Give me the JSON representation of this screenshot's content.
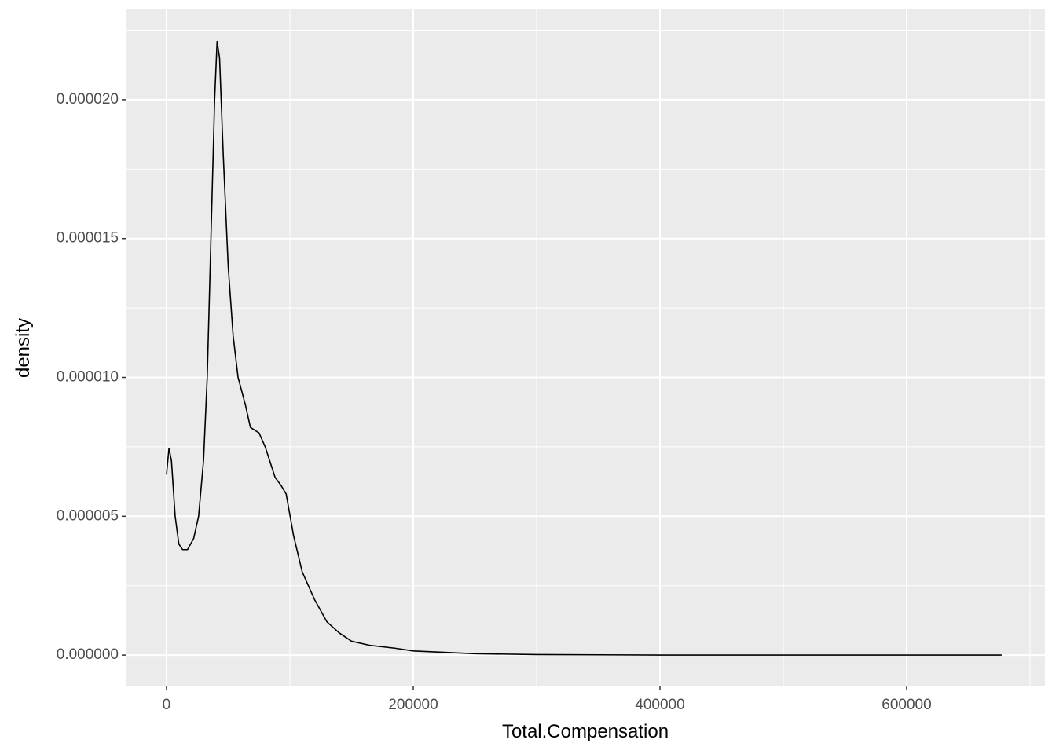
{
  "chart_data": {
    "type": "line",
    "x_label": "Total.Compensation",
    "y_label": "density",
    "x": [
      0,
      2000,
      4000,
      7000,
      10000,
      13000,
      17000,
      22000,
      26000,
      30000,
      33000,
      36000,
      39000,
      41000,
      43000,
      46000,
      50000,
      54000,
      58000,
      64000,
      68000,
      75000,
      80000,
      88000,
      93000,
      97000,
      103000,
      110000,
      120000,
      130000,
      140000,
      150000,
      165000,
      185000,
      200000,
      250000,
      300000,
      400000,
      677000
    ],
    "series": [
      {
        "color": "#000000",
        "values": [
          6.5e-06,
          7.45e-06,
          7e-06,
          5e-06,
          4e-06,
          3.8e-06,
          3.8e-06,
          4.2e-06,
          5e-06,
          7e-06,
          1e-05,
          1.5e-05,
          2e-05,
          2.21e-05,
          2.15e-05,
          1.8e-05,
          1.4e-05,
          1.15e-05,
          1e-05,
          9e-06,
          8.2e-06,
          8e-06,
          7.5e-06,
          6.4e-06,
          6.1e-06,
          5.8e-06,
          4.3e-06,
          3e-06,
          2e-06,
          1.2e-06,
          8e-07,
          5e-07,
          3.5e-07,
          2.5e-07,
          1.5e-07,
          5e-08,
          2e-08,
          0,
          0
        ]
      }
    ],
    "xlim": [
      -33100,
      712100
    ],
    "ylim": [
      -1.1e-06,
      2.325e-05
    ],
    "xticks": [
      0,
      200000,
      400000,
      600000
    ],
    "yticks": [
      {
        "value": 0,
        "label": "0.000000"
      },
      {
        "value": 5e-06,
        "label": "0.000005"
      },
      {
        "value": 1e-05,
        "label": "0.000010"
      },
      {
        "value": 1.5e-05,
        "label": "0.000015"
      },
      {
        "value": 2e-05,
        "label": "0.000020"
      }
    ],
    "xminor": [
      100000,
      300000,
      500000,
      700000
    ],
    "yminor": [
      2.5e-06,
      7.5e-06,
      1.25e-05,
      1.75e-05,
      2.25e-05
    ],
    "grid": true,
    "panel_color": "#EBEBEB"
  }
}
